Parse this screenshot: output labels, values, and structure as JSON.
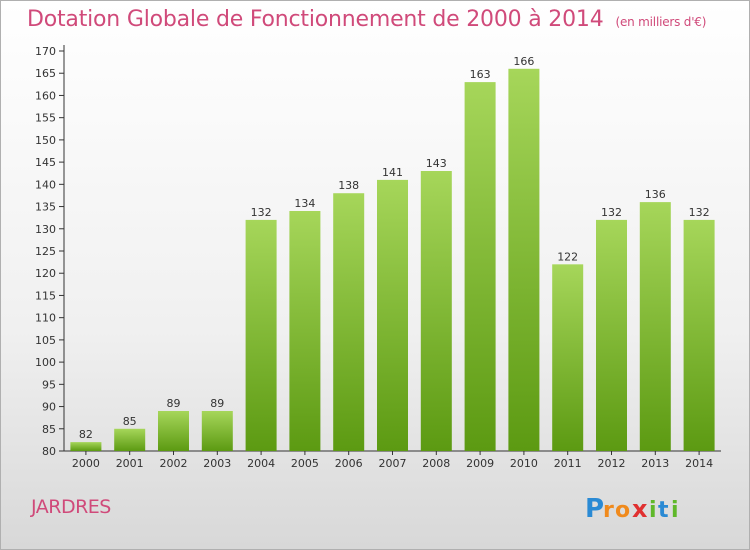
{
  "header": {
    "title": "Dotation Globale de Fonctionnement de 2000 à 2014",
    "subtitle": "(en milliers d'€)"
  },
  "footer": {
    "commune": "JARDRES",
    "logo_text": "Proxiti"
  },
  "colors": {
    "title": "#d04a7a",
    "bar_top": "#a6d65a",
    "bar_bottom": "#5c9a12",
    "axis": "#333333"
  },
  "chart_data": {
    "type": "bar",
    "title": "Dotation Globale de Fonctionnement de 2000 à 2014",
    "subtitle": "(en milliers d'€)",
    "xlabel": "",
    "ylabel": "",
    "categories": [
      "2000",
      "2001",
      "2002",
      "2003",
      "2004",
      "2005",
      "2006",
      "2007",
      "2008",
      "2009",
      "2010",
      "2011",
      "2012",
      "2013",
      "2014"
    ],
    "values": [
      82,
      85,
      89,
      89,
      132,
      134,
      138,
      141,
      143,
      163,
      166,
      122,
      132,
      136,
      132
    ],
    "ylim": [
      80,
      170
    ],
    "yticks": [
      80,
      85,
      90,
      95,
      100,
      105,
      110,
      115,
      120,
      125,
      130,
      135,
      140,
      145,
      150,
      155,
      160,
      165,
      170
    ],
    "grid": false,
    "data_labels": true
  }
}
